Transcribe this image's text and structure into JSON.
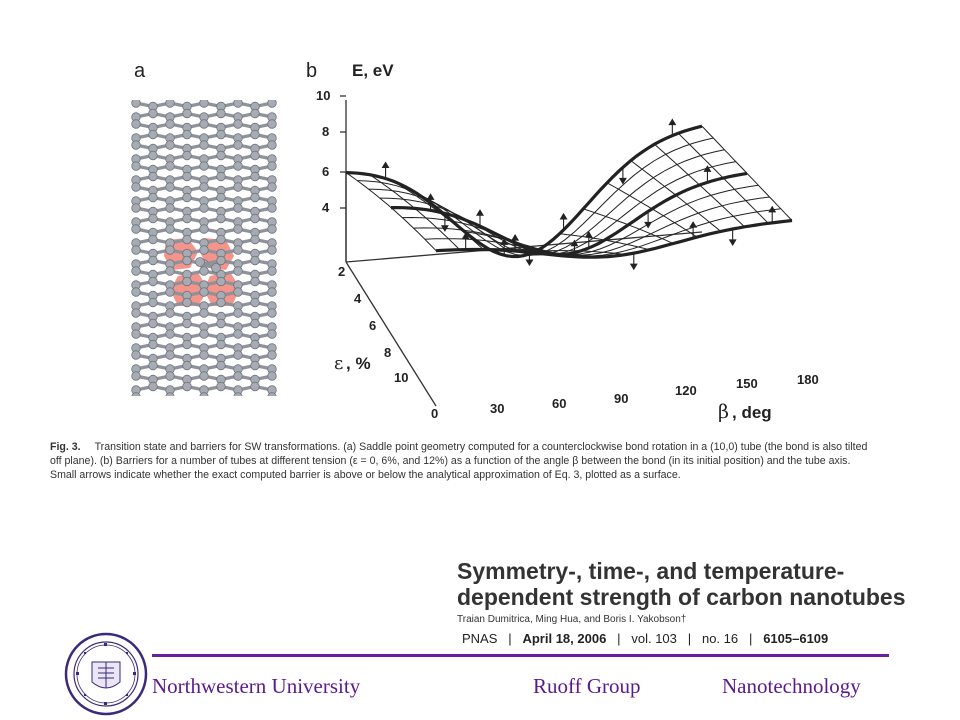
{
  "panel_a": {
    "letter": "a"
  },
  "panel_b": {
    "letter": "b",
    "z_axis_label": "E, eV",
    "z_ticks": [
      "10",
      "8",
      "6",
      "4"
    ],
    "eps_axis_label": ", %",
    "eps_symbol": "ε",
    "eps_ticks": [
      "2",
      "4",
      "6",
      "8",
      "10"
    ],
    "beta_axis_label": ", deg",
    "beta_symbol": "β",
    "beta_ticks": [
      "0",
      "30",
      "60",
      "90",
      "120",
      "150",
      "180"
    ]
  },
  "caption": {
    "label": "Fig. 3.",
    "text": "Transition state and barriers for SW transformations. (a) Saddle point geometry computed for a counterclockwise bond rotation in a (10,0) tube (the bond is also tilted off plane). (b) Barriers for a number of tubes at different tension (ε = 0, 6%, and 12%) as a function of the angle β between the bond (in its initial position) and the tube axis. Small arrows indicate whether the exact computed barrier is above or below the analytical approximation of Eq. 3, plotted as a surface."
  },
  "paper": {
    "title": "Symmetry-, time-, and temperature-dependent strength of carbon nanotubes",
    "authors": "Traian Dumitrica, Ming Hua, and Boris I. Yakobson†",
    "journal": "PNAS",
    "date": "April 18, 2006",
    "volume": "vol. 103",
    "issue": "no. 16",
    "pages": "6105–6109"
  },
  "footer": {
    "left": "Northwestern University",
    "middle": "Ruoff Group",
    "right": "Nanotechnology"
  },
  "colors": {
    "footer_purple": "#5b1a8c",
    "defect_fill": "#f4948a"
  }
}
